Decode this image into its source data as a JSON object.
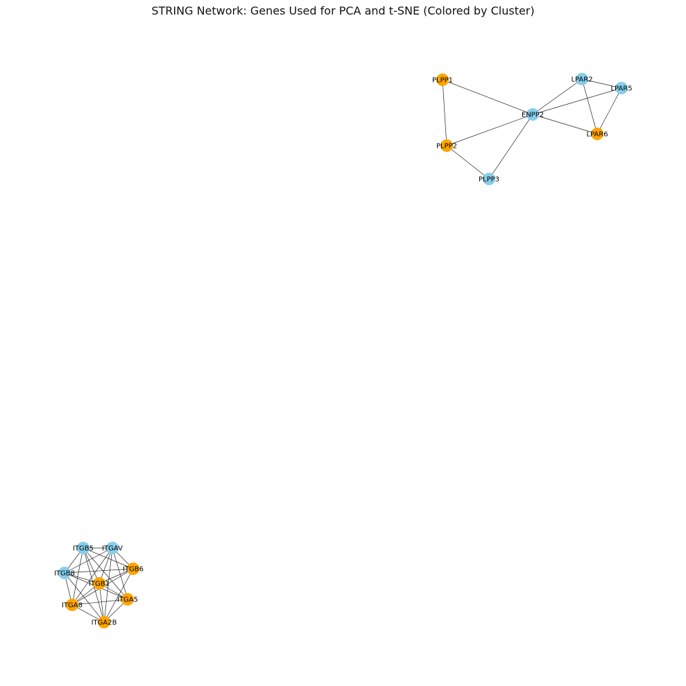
{
  "title": "STRING Network: Genes Used for PCA and t-SNE (Colored by Cluster)",
  "colors": {
    "cluster_a": "#87ceeb",
    "cluster_b": "#ffa500",
    "edge": "#222222",
    "label": "#000000"
  },
  "nodes": [
    {
      "id": "PLPP1",
      "cluster": "b"
    },
    {
      "id": "LPAR2",
      "cluster": "a"
    },
    {
      "id": "LPAR5",
      "cluster": "a"
    },
    {
      "id": "ENPP2",
      "cluster": "a"
    },
    {
      "id": "LPAR6",
      "cluster": "b"
    },
    {
      "id": "PLPP2",
      "cluster": "b"
    },
    {
      "id": "PLPP3",
      "cluster": "a"
    },
    {
      "id": "ITGB5",
      "cluster": "a"
    },
    {
      "id": "ITGAV",
      "cluster": "a"
    },
    {
      "id": "ITGB6",
      "cluster": "b"
    },
    {
      "id": "ITGB8",
      "cluster": "a"
    },
    {
      "id": "ITGB1",
      "cluster": "b"
    },
    {
      "id": "ITGA5",
      "cluster": "b"
    },
    {
      "id": "ITGA8",
      "cluster": "b"
    },
    {
      "id": "ITGA2B",
      "cluster": "b"
    }
  ],
  "edges": [
    [
      "PLPP1",
      "ENPP2"
    ],
    [
      "PLPP1",
      "PLPP2"
    ],
    [
      "PLPP2",
      "ENPP2"
    ],
    [
      "PLPP2",
      "PLPP3"
    ],
    [
      "PLPP3",
      "ENPP2"
    ],
    [
      "ENPP2",
      "LPAR2"
    ],
    [
      "ENPP2",
      "LPAR5"
    ],
    [
      "ENPP2",
      "LPAR6"
    ],
    [
      "LPAR2",
      "LPAR5"
    ],
    [
      "LPAR2",
      "LPAR6"
    ],
    [
      "LPAR5",
      "LPAR6"
    ],
    [
      "ITGB5",
      "ITGAV"
    ],
    [
      "ITGB5",
      "ITGB6"
    ],
    [
      "ITGB5",
      "ITGB8"
    ],
    [
      "ITGB5",
      "ITGB1"
    ],
    [
      "ITGB5",
      "ITGA5"
    ],
    [
      "ITGB5",
      "ITGA8"
    ],
    [
      "ITGB5",
      "ITGA2B"
    ],
    [
      "ITGAV",
      "ITGB6"
    ],
    [
      "ITGAV",
      "ITGB8"
    ],
    [
      "ITGAV",
      "ITGB1"
    ],
    [
      "ITGAV",
      "ITGA5"
    ],
    [
      "ITGAV",
      "ITGA8"
    ],
    [
      "ITGAV",
      "ITGA2B"
    ],
    [
      "ITGB6",
      "ITGB8"
    ],
    [
      "ITGB6",
      "ITGB1"
    ],
    [
      "ITGB6",
      "ITGA8"
    ],
    [
      "ITGB6",
      "ITGA2B"
    ],
    [
      "ITGB8",
      "ITGB1"
    ],
    [
      "ITGB8",
      "ITGA5"
    ],
    [
      "ITGB8",
      "ITGA8"
    ],
    [
      "ITGB8",
      "ITGA2B"
    ],
    [
      "ITGB1",
      "ITGA5"
    ],
    [
      "ITGB1",
      "ITGA8"
    ],
    [
      "ITGB1",
      "ITGA2B"
    ],
    [
      "ITGA5",
      "ITGA8"
    ],
    [
      "ITGA5",
      "ITGA2B"
    ],
    [
      "ITGA8",
      "ITGA2B"
    ]
  ]
}
